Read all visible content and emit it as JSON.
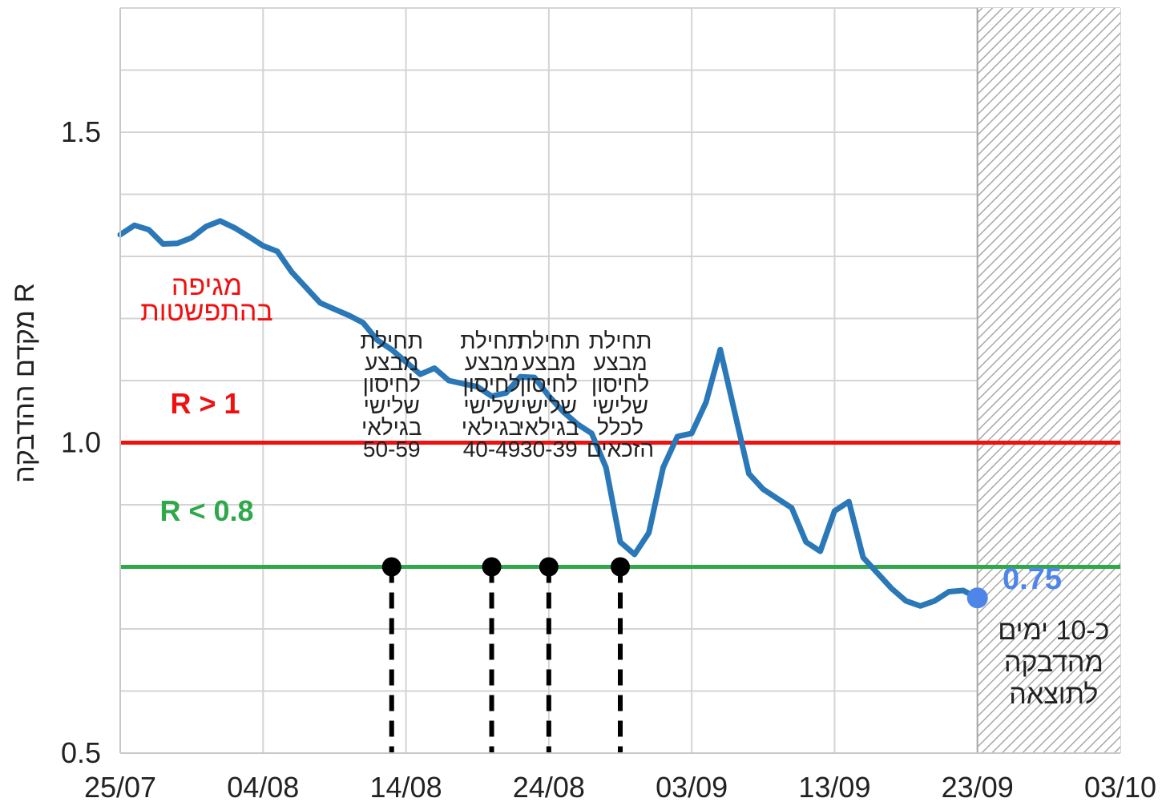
{
  "chart_data": {
    "type": "line",
    "title": "",
    "xlabel": "",
    "ylabel": "מקדם ההדבקה R",
    "ylim": [
      0.5,
      1.7
    ],
    "xlim": [
      "2021-07-25",
      "2021-10-03"
    ],
    "x_ticks": [
      "25/07",
      "04/08",
      "14/08",
      "24/08",
      "03/09",
      "13/09",
      "23/09",
      "03/10"
    ],
    "y_ticks": [
      "0.5",
      "1.0",
      "1.5"
    ],
    "grid": true,
    "colors": {
      "series": "#2a78b8",
      "epidemic_line": "#f01010",
      "target_line": "#2ea84a",
      "end_point": "#4d86e8",
      "hatch": "#9a9a9a"
    },
    "series": [
      {
        "name": "",
        "x": [
          "2021-07-25",
          "2021-07-26",
          "2021-07-27",
          "2021-07-28",
          "2021-07-29",
          "2021-07-30",
          "2021-07-31",
          "2021-08-01",
          "2021-08-02",
          "2021-08-03",
          "2021-08-04",
          "2021-08-05",
          "2021-08-06",
          "2021-08-07",
          "2021-08-08",
          "2021-08-09",
          "2021-08-10",
          "2021-08-11",
          "2021-08-12",
          "2021-08-13",
          "2021-08-14",
          "2021-08-15",
          "2021-08-16",
          "2021-08-17",
          "2021-08-18",
          "2021-08-19",
          "2021-08-20",
          "2021-08-21",
          "2021-08-22",
          "2021-08-23",
          "2021-08-24",
          "2021-08-25",
          "2021-08-26",
          "2021-08-27",
          "2021-08-28",
          "2021-08-29",
          "2021-08-30",
          "2021-08-31",
          "2021-09-01",
          "2021-09-02",
          "2021-09-03",
          "2021-09-04",
          "2021-09-05",
          "2021-09-06",
          "2021-09-07",
          "2021-09-08",
          "2021-09-09",
          "2021-09-10",
          "2021-09-11",
          "2021-09-12",
          "2021-09-13",
          "2021-09-14",
          "2021-09-15",
          "2021-09-16",
          "2021-09-17",
          "2021-09-18",
          "2021-09-19",
          "2021-09-20",
          "2021-09-21",
          "2021-09-22",
          "2021-09-23"
        ],
        "values": [
          1.335,
          1.35,
          1.343,
          1.32,
          1.321,
          1.33,
          1.348,
          1.357,
          1.346,
          1.332,
          1.317,
          1.308,
          1.275,
          1.25,
          1.225,
          1.215,
          1.205,
          1.193,
          1.165,
          1.15,
          1.13,
          1.11,
          1.12,
          1.1,
          1.095,
          1.09,
          1.075,
          1.08,
          1.106,
          1.105,
          1.075,
          1.05,
          1.03,
          1.015,
          0.96,
          0.84,
          0.82,
          0.855,
          0.96,
          1.01,
          1.015,
          1.065,
          1.15,
          1.05,
          0.95,
          0.925,
          0.91,
          0.895,
          0.84,
          0.825,
          0.89,
          0.905,
          0.815,
          0.79,
          0.765,
          0.745,
          0.737,
          0.745,
          0.76,
          0.762,
          0.75
        ]
      }
    ],
    "reference_lines": [
      {
        "y": 1.0,
        "label": "R > 1"
      },
      {
        "y": 0.8,
        "label": "R < 0.8"
      }
    ],
    "epidemic_label": [
      "מגיפה",
      "בהתפשטות"
    ],
    "milestones": [
      {
        "x": "2021-08-13",
        "lines": [
          "תחילת",
          "מבצע",
          "לחיסון",
          "שלישי",
          "בגילאי",
          "50-59"
        ]
      },
      {
        "x": "2021-08-20",
        "lines": [
          "תחילת",
          "מבצע",
          "לחיסון",
          "שלישי",
          "בגילאי",
          "40-49"
        ]
      },
      {
        "x": "2021-08-24",
        "lines": [
          "תחילת",
          "מבצע",
          "לחיסון",
          "שלישי",
          "בגילאי",
          "30-39"
        ]
      },
      {
        "x": "2021-08-29",
        "lines": [
          "תחילת",
          "מבצע",
          "לחיסון",
          "שלישי",
          "לכלל",
          "הזכאים"
        ]
      }
    ],
    "last_value": {
      "x": "2021-09-23",
      "y": 0.75,
      "label": "0.75"
    },
    "delay_region": {
      "from": "2021-09-23",
      "to": "2021-10-03",
      "lines": [
        "כ-10 ימים",
        "מהדבקה",
        "לתוצאה"
      ]
    }
  }
}
